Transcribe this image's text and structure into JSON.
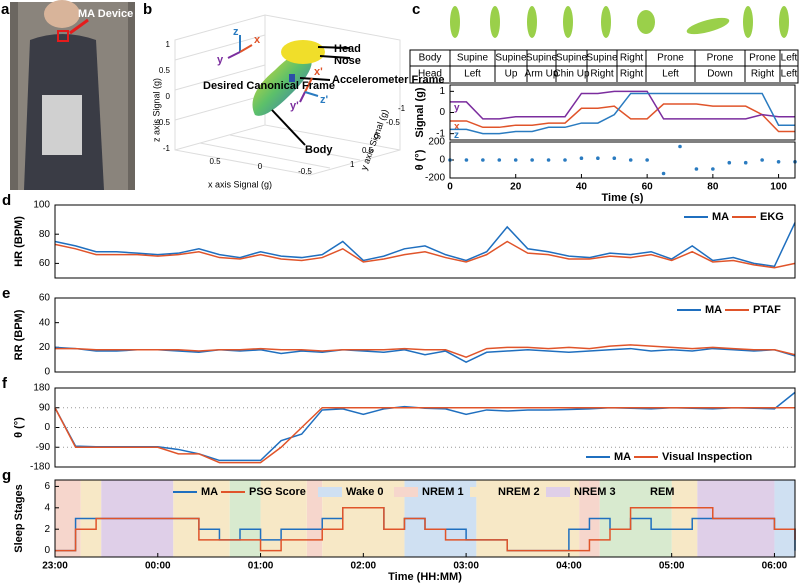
{
  "photo": {
    "panel": "a",
    "label": "MA Device"
  },
  "diagram": {
    "panel": "b",
    "head": "Head",
    "nose": "Nose",
    "accelerometer": "Accelerometer Frame",
    "canonical": "Desired Canonical Frame",
    "body": "Body",
    "z_axis_label": "z axis Signal (g)",
    "x_axis_label": "x axis Signal (g)",
    "y_axis_label": "y axis Signal (g)",
    "z_ticks": [
      1,
      0.5,
      0,
      -0.5,
      -1
    ],
    "x_ticks": [
      0.5,
      0,
      -0.5
    ],
    "y_ticks": [
      1,
      0.5,
      0,
      -0.5,
      -1
    ],
    "frame_axes": [
      "z",
      "x",
      "y"
    ],
    "accel_axes": [
      "x'",
      "y'",
      "z'"
    ]
  },
  "table": {
    "rows": [
      [
        "Body",
        "Supine",
        "Supine",
        "Supine",
        "Supine",
        "Supine",
        "Right",
        "Prone",
        "Prone",
        "Prone",
        "Left"
      ],
      [
        "Head",
        "Left",
        "Up",
        "Arm Up",
        "Chin Up",
        "Right",
        "Right",
        "Left",
        "Down",
        "Right",
        "Left"
      ]
    ]
  },
  "chart_data": [
    {
      "type": "line",
      "panel": "c",
      "ylabel": "Signal (g)",
      "legend": "inline",
      "x": [
        0,
        5,
        10,
        15,
        20,
        25,
        30,
        35,
        40,
        45,
        50,
        55,
        60,
        65,
        70,
        75,
        80,
        85,
        90,
        95,
        100,
        105
      ],
      "series": [
        {
          "name": "x",
          "color": "#e0542a",
          "values": [
            -0.4,
            -0.4,
            -0.7,
            -0.7,
            -0.6,
            -0.6,
            -0.5,
            -0.5,
            0.2,
            0.2,
            0.3,
            -0.3,
            -0.3,
            0.4,
            0.4,
            0.4,
            0.3,
            0.3,
            0.3,
            -0.1,
            -0.9,
            -0.9
          ]
        },
        {
          "name": "y",
          "color": "#7b2d9e",
          "values": [
            0.5,
            0.5,
            -0.3,
            -0.3,
            -0.2,
            -0.2,
            -0.2,
            -0.2,
            0.9,
            0.9,
            1.0,
            1.0,
            1.0,
            -0.3,
            -0.3,
            -0.3,
            -0.3,
            -0.3,
            -0.3,
            -0.1,
            -0.2,
            -0.2
          ]
        },
        {
          "name": "z",
          "color": "#2a7bc0",
          "values": [
            -0.8,
            -0.8,
            -1.0,
            -1.0,
            -0.9,
            -0.9,
            -0.7,
            -0.7,
            -0.5,
            -0.5,
            -0.1,
            0.9,
            0.9,
            0.9,
            0.9,
            0.9,
            0.9,
            0.9,
            0.9,
            0.9,
            -0.6,
            -0.6
          ]
        }
      ],
      "xlim": [
        0,
        105
      ],
      "ylim": [
        -1.3,
        1.3
      ],
      "yticks": [
        -1,
        0,
        1
      ]
    },
    {
      "type": "scatter",
      "ylabel": "θ (°)",
      "xlabel": "Time (s)",
      "color": "#2a7bc0",
      "x": [
        0,
        5,
        10,
        15,
        20,
        25,
        30,
        35,
        40,
        45,
        50,
        55,
        60,
        65,
        70,
        75,
        80,
        85,
        90,
        95,
        100,
        105
      ],
      "values": [
        0,
        0,
        0,
        0,
        0,
        0,
        0,
        0,
        20,
        20,
        20,
        0,
        0,
        -150,
        150,
        -100,
        -100,
        -30,
        -30,
        0,
        -20,
        -20
      ],
      "xlim": [
        0,
        105
      ],
      "ylim": [
        -200,
        200
      ],
      "xticks": [
        0,
        20,
        40,
        60,
        80,
        100
      ],
      "yticks": [
        -200,
        0,
        200
      ]
    },
    {
      "type": "line",
      "panel": "d",
      "ylabel": "HR (BPM)",
      "legend": "upper right",
      "x": [
        0,
        0.2,
        0.4,
        0.6,
        0.8,
        1,
        1.2,
        1.4,
        1.6,
        1.8,
        2,
        2.2,
        2.4,
        2.6,
        2.8,
        3,
        3.2,
        3.4,
        3.6,
        3.8,
        4,
        4.2,
        4.4,
        4.6,
        4.8,
        5,
        5.2,
        5.4,
        5.6,
        5.8,
        6,
        6.2,
        6.4,
        6.6,
        6.8,
        7,
        7.2
      ],
      "series": [
        {
          "name": "MA",
          "color": "#1f6fbf",
          "values": [
            75,
            72,
            68,
            68,
            67,
            66,
            67,
            70,
            66,
            64,
            68,
            65,
            64,
            66,
            75,
            62,
            65,
            70,
            72,
            66,
            62,
            68,
            85,
            70,
            68,
            65,
            64,
            67,
            66,
            68,
            63,
            72,
            62,
            64,
            60,
            58,
            88
          ]
        },
        {
          "name": "EKG",
          "color": "#e0542a",
          "values": [
            73,
            70,
            66,
            66,
            66,
            65,
            66,
            68,
            64,
            63,
            66,
            63,
            62,
            64,
            70,
            61,
            63,
            66,
            68,
            64,
            61,
            66,
            75,
            67,
            66,
            63,
            63,
            65,
            64,
            66,
            62,
            68,
            61,
            62,
            59,
            57,
            60
          ]
        }
      ],
      "xlim": [
        0,
        7.2
      ],
      "ylim": [
        50,
        100
      ],
      "yticks": [
        60,
        80,
        100
      ]
    },
    {
      "type": "line",
      "panel": "e",
      "ylabel": "RR (BPM)",
      "legend": "upper right",
      "x": [
        0,
        0.2,
        0.4,
        0.6,
        0.8,
        1,
        1.2,
        1.4,
        1.6,
        1.8,
        2,
        2.2,
        2.4,
        2.6,
        2.8,
        3,
        3.2,
        3.4,
        3.6,
        3.8,
        4,
        4.2,
        4.4,
        4.6,
        4.8,
        5,
        5.2,
        5.4,
        5.6,
        5.8,
        6,
        6.2,
        6.4,
        6.6,
        6.8,
        7,
        7.2
      ],
      "series": [
        {
          "name": "MA",
          "color": "#1f6fbf",
          "values": [
            20,
            19,
            17,
            17,
            18,
            18,
            17,
            16,
            18,
            17,
            18,
            15,
            17,
            16,
            18,
            17,
            16,
            18,
            14,
            17,
            8,
            16,
            17,
            18,
            17,
            16,
            17,
            18,
            19,
            17,
            18,
            17,
            19,
            18,
            17,
            18,
            13
          ]
        },
        {
          "name": "PTAF",
          "color": "#e0542a",
          "values": [
            19,
            19,
            18,
            18,
            18,
            18,
            18,
            17,
            18,
            18,
            19,
            18,
            18,
            17,
            18,
            18,
            18,
            19,
            18,
            18,
            12,
            19,
            20,
            20,
            19,
            20,
            19,
            21,
            22,
            21,
            20,
            19,
            20,
            19,
            18,
            18,
            14
          ]
        }
      ],
      "xlim": [
        0,
        7.2
      ],
      "ylim": [
        0,
        60
      ],
      "yticks": [
        0,
        20,
        40,
        60
      ]
    },
    {
      "type": "line",
      "panel": "f",
      "ylabel": "θ (°)",
      "legend": "lower right",
      "grid": true,
      "x": [
        0,
        0.2,
        0.4,
        0.6,
        0.8,
        1,
        1.2,
        1.4,
        1.6,
        1.8,
        2,
        2.2,
        2.4,
        2.6,
        2.8,
        3,
        3.2,
        3.4,
        3.6,
        3.8,
        4,
        4.2,
        4.4,
        4.6,
        4.8,
        5,
        5.2,
        5.4,
        5.6,
        5.8,
        6,
        6.2,
        6.4,
        6.6,
        6.8,
        7,
        7.2
      ],
      "series": [
        {
          "name": "MA",
          "color": "#1f6fbf",
          "values": [
            90,
            -85,
            -88,
            -88,
            -88,
            -88,
            -100,
            -120,
            -150,
            -150,
            -150,
            -60,
            -30,
            80,
            85,
            60,
            85,
            95,
            88,
            85,
            60,
            80,
            75,
            80,
            80,
            82,
            85,
            90,
            88,
            85,
            90,
            88,
            85,
            90,
            88,
            85,
            160
          ]
        },
        {
          "name": "Visual Inspection",
          "color": "#e0542a",
          "values": [
            90,
            -90,
            -90,
            -90,
            -90,
            -90,
            -120,
            -120,
            -160,
            -160,
            -160,
            -90,
            0,
            90,
            90,
            90,
            90,
            90,
            90,
            90,
            90,
            90,
            90,
            90,
            90,
            90,
            90,
            90,
            90,
            90,
            90,
            90,
            90,
            90,
            90,
            90,
            90
          ]
        }
      ],
      "xlim": [
        0,
        7.2
      ],
      "ylim": [
        -180,
        180
      ],
      "yticks": [
        -180,
        -90,
        0,
        90,
        180
      ]
    },
    {
      "type": "line",
      "panel": "g",
      "ylabel": "Sleep Stages",
      "xlabel": "Time (HH:MM)",
      "legend": "top",
      "step": true,
      "x": [
        0,
        0.2,
        0.4,
        0.6,
        0.8,
        1,
        1.2,
        1.4,
        1.6,
        1.8,
        2,
        2.2,
        2.4,
        2.6,
        2.8,
        3,
        3.2,
        3.4,
        3.6,
        3.8,
        4,
        4.2,
        4.4,
        4.6,
        4.8,
        5,
        5.2,
        5.4,
        5.6,
        5.8,
        6,
        6.2,
        6.4,
        6.6,
        6.8,
        7,
        7.2
      ],
      "series": [
        {
          "name": "MA",
          "color": "#1f6fbf",
          "values": [
            0,
            3,
            3,
            3,
            3,
            3,
            3,
            2,
            1,
            2,
            1,
            2,
            2,
            3,
            4,
            4,
            2,
            3,
            2,
            2,
            1,
            1,
            0,
            0,
            0,
            2,
            3,
            2,
            3,
            2,
            2,
            3,
            3,
            3,
            3,
            2,
            0
          ]
        },
        {
          "name": "PSG Score",
          "color": "#e0542a",
          "values": [
            0,
            2,
            3,
            3,
            3,
            3,
            3,
            1,
            1,
            1,
            0,
            1,
            1,
            2,
            4,
            4,
            2,
            3,
            2,
            1,
            1,
            1,
            0,
            0,
            0,
            0,
            1,
            2,
            4,
            4,
            4,
            4,
            3,
            3,
            3,
            2,
            1
          ]
        }
      ],
      "regions": [
        {
          "name": "Wake 0",
          "color": "#cfe0f2",
          "spans": [
            [
              3.4,
              4.1
            ],
            [
              7.0,
              7.2
            ]
          ]
        },
        {
          "name": "NREM 1",
          "color": "#f6d6cc",
          "spans": [
            [
              0,
              0.25
            ],
            [
              2.45,
              2.6
            ],
            [
              5.1,
              5.3
            ]
          ]
        },
        {
          "name": "NREM 2",
          "color": "#f7e8c6",
          "spans": [
            [
              0.25,
              0.45
            ],
            [
              1.15,
              1.7
            ],
            [
              2.0,
              2.45
            ],
            [
              2.6,
              3.4
            ],
            [
              4.1,
              5.1
            ],
            [
              6.0,
              6.25
            ]
          ]
        },
        {
          "name": "NREM 3",
          "color": "#dfcfe8",
          "spans": [
            [
              0.45,
              1.15
            ],
            [
              6.25,
              7.0
            ]
          ]
        },
        {
          "name": "REM",
          "color": "#d8eacf",
          "spans": [
            [
              1.7,
              2.0
            ],
            [
              5.3,
              6.0
            ]
          ]
        }
      ],
      "xlim": [
        0,
        7.2
      ],
      "ylim": [
        -0.6,
        6.6
      ],
      "yticks": [
        0,
        2,
        4,
        6
      ],
      "xticks": [
        {
          "value": 0,
          "label": "23:00"
        },
        {
          "value": 1,
          "label": "00:00"
        },
        {
          "value": 2,
          "label": "01:00"
        },
        {
          "value": 3,
          "label": "02:00"
        },
        {
          "value": 4,
          "label": "03:00"
        },
        {
          "value": 5,
          "label": "04:00"
        },
        {
          "value": 6,
          "label": "05:00"
        },
        {
          "value": 7,
          "label": "06:00"
        }
      ]
    }
  ]
}
